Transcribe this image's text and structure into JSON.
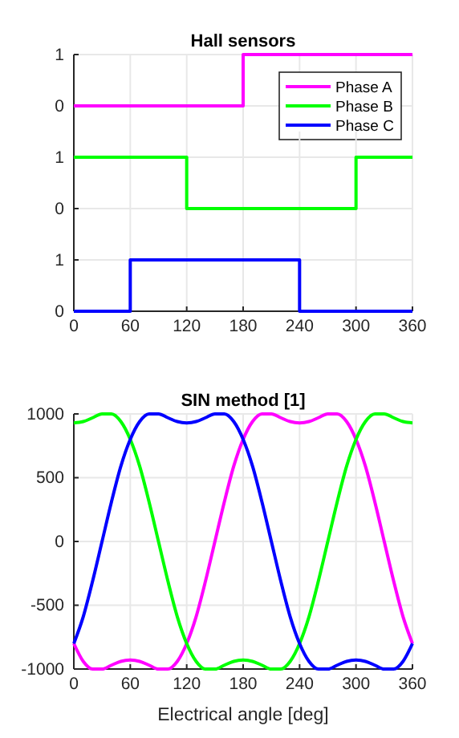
{
  "chart_data": [
    {
      "type": "step",
      "title": "Hall sensors",
      "xlim": [
        0,
        360
      ],
      "ylim": [
        -0.5,
        1
      ],
      "yticks": [
        0,
        1
      ],
      "grid": true,
      "legend": "top right",
      "tick_labels": "y",
      "series": [
        {
          "name": "Phase A",
          "color": "#ff00ff",
          "x": [
            0,
            180,
            360
          ],
          "values": [
            0,
            1,
            1
          ]
        }
      ]
    },
    {
      "type": "step",
      "xlim": [
        0,
        360
      ],
      "ylim": [
        -0.5,
        1.5
      ],
      "yticks": [
        0,
        1
      ],
      "grid": true,
      "tick_labels": "y",
      "series": [
        {
          "name": "Phase B",
          "color": "#00ff00",
          "x": [
            0,
            120,
            300,
            360
          ],
          "values": [
            1,
            0,
            1,
            1
          ]
        }
      ]
    },
    {
      "type": "step",
      "xlim": [
        0,
        360
      ],
      "xticks": [
        0,
        60,
        120,
        180,
        240,
        300,
        360
      ],
      "ylim": [
        0,
        1.5
      ],
      "yticks": [
        0,
        1
      ],
      "grid": true,
      "series": [
        {
          "name": "Phase C",
          "color": "#0000ff",
          "x": [
            0,
            60,
            240,
            360
          ],
          "values": [
            0,
            1,
            0,
            0
          ]
        }
      ]
    },
    {
      "type": "line",
      "title": "SIN method [1]",
      "xlabel": "Electrical angle [deg]",
      "xlim": [
        0,
        360
      ],
      "xticks": [
        0,
        60,
        120,
        180,
        240,
        300,
        360
      ],
      "ylim": [
        -1000,
        1000
      ],
      "yticks": [
        -1000,
        -500,
        0,
        500,
        1000
      ],
      "grid": true,
      "x": [
        0,
        10,
        20,
        30,
        40,
        50,
        60,
        70,
        80,
        90,
        100,
        110,
        120,
        130,
        140,
        150,
        160,
        170,
        180,
        190,
        200,
        210,
        220,
        230,
        240,
        250,
        260,
        270,
        280,
        290,
        300,
        310,
        320,
        330,
        340,
        350,
        360
      ],
      "series": [
        {
          "color": "#ff00ff",
          "values": [
            -800,
            -940,
            -1000,
            -1000,
            -970,
            -940,
            -930,
            -940,
            -970,
            -1000,
            -1000,
            -940,
            -800,
            -590,
            -310,
            0,
            310,
            590,
            800,
            940,
            1000,
            1000,
            970,
            940,
            930,
            940,
            970,
            1000,
            1000,
            940,
            800,
            590,
            310,
            0,
            -310,
            -590,
            -800
          ]
        },
        {
          "color": "#00ff00",
          "values": [
            930,
            940,
            970,
            1000,
            1000,
            940,
            800,
            590,
            310,
            0,
            -310,
            -590,
            -800,
            -940,
            -1000,
            -1000,
            -970,
            -940,
            -930,
            -940,
            -970,
            -1000,
            -1000,
            -940,
            -800,
            -590,
            -310,
            0,
            310,
            590,
            800,
            940,
            1000,
            1000,
            970,
            940,
            930
          ]
        },
        {
          "color": "#0000ff",
          "values": [
            -800,
            -590,
            -310,
            0,
            310,
            590,
            800,
            940,
            1000,
            1000,
            970,
            940,
            930,
            940,
            970,
            1000,
            1000,
            940,
            800,
            590,
            310,
            0,
            -310,
            -590,
            -800,
            -940,
            -1000,
            -1000,
            -970,
            -940,
            -930,
            -940,
            -970,
            -1000,
            -1000,
            -940,
            -800
          ]
        }
      ]
    }
  ]
}
